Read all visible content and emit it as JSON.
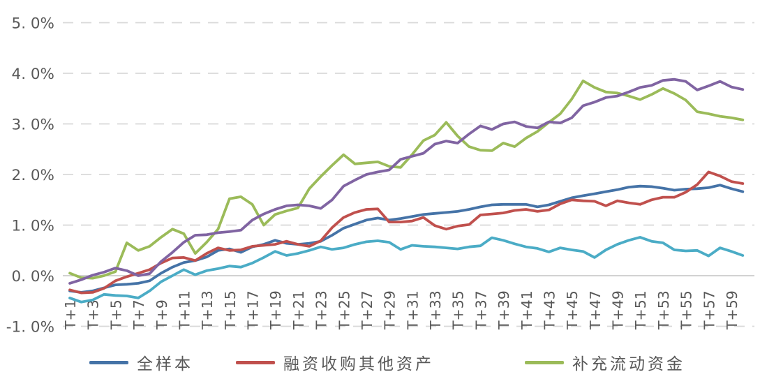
{
  "chart_data": {
    "type": "line",
    "title": "",
    "legend_position": "bottom",
    "grid": "horizontal-dashed",
    "x_points": 60,
    "x_tick_labels": [
      "T+1",
      "T+3",
      "T+5",
      "T+7",
      "T+9",
      "T+11",
      "T+13",
      "T+15",
      "T+17",
      "T+19",
      "T+21",
      "T+23",
      "T+25",
      "T+27",
      "T+29",
      "T+31",
      "T+33",
      "T+35",
      "T+37",
      "T+39",
      "T+41",
      "T+43",
      "T+45",
      "T+47",
      "T+49",
      "T+51",
      "T+53",
      "T+55",
      "T+57",
      "T+59"
    ],
    "y_axis": {
      "min": -1,
      "max": 5,
      "unit": "%",
      "tick_labels": [
        "5. 0%",
        "4. 0%",
        "3. 0%",
        "2. 0%",
        "1. 0%",
        "0. 0%",
        "-1. 0%"
      ],
      "tick_values": [
        5,
        4,
        3,
        2,
        1,
        0,
        -1
      ]
    },
    "colors": {
      "blue": "#4573a7",
      "red": "#c0504d",
      "green": "#9bbb59",
      "purple": "#8064a2",
      "cyan": "#4bacc6",
      "gridline": "#d9d9d9",
      "zero_line": "#c3c3c3",
      "axis_text": "#595959"
    },
    "legend": [
      {
        "label": "全样本",
        "color": "#4573a7"
      },
      {
        "label": "融资收购其他资产",
        "color": "#c0504d"
      },
      {
        "label": "补充流动资金",
        "color": "#9bbb59"
      }
    ],
    "series": [
      {
        "key": "all-samples",
        "name": "全样本",
        "color": "#4573a7",
        "legend_visible": true,
        "values": [
          -0.3,
          -0.33,
          -0.3,
          -0.24,
          -0.18,
          -0.17,
          -0.15,
          -0.1,
          0.05,
          0.17,
          0.26,
          0.3,
          0.37,
          0.5,
          0.53,
          0.46,
          0.57,
          0.62,
          0.7,
          0.64,
          0.62,
          0.64,
          0.68,
          0.8,
          0.94,
          1.02,
          1.1,
          1.14,
          1.1,
          1.13,
          1.17,
          1.21,
          1.23,
          1.25,
          1.27,
          1.31,
          1.36,
          1.4,
          1.41,
          1.41,
          1.41,
          1.36,
          1.4,
          1.47,
          1.54,
          1.58,
          1.62,
          1.66,
          1.7,
          1.75,
          1.77,
          1.76,
          1.73,
          1.69,
          1.71,
          1.72,
          1.74,
          1.79,
          1.72,
          1.66
        ]
      },
      {
        "key": "financing-acquire-assets",
        "name": "融资收购其他资产",
        "color": "#c0504d",
        "legend_visible": true,
        "values": [
          -0.28,
          -0.34,
          -0.33,
          -0.25,
          -0.1,
          -0.02,
          0.05,
          0.12,
          0.25,
          0.35,
          0.36,
          0.3,
          0.44,
          0.55,
          0.5,
          0.51,
          0.58,
          0.6,
          0.62,
          0.68,
          0.62,
          0.58,
          0.69,
          0.95,
          1.15,
          1.25,
          1.31,
          1.32,
          1.06,
          1.06,
          1.08,
          1.15,
          0.99,
          0.92,
          0.98,
          1.01,
          1.2,
          1.22,
          1.24,
          1.29,
          1.31,
          1.27,
          1.3,
          1.42,
          1.5,
          1.48,
          1.47,
          1.38,
          1.48,
          1.44,
          1.41,
          1.5,
          1.55,
          1.55,
          1.65,
          1.8,
          2.05,
          1.97,
          1.86,
          1.82
        ]
      },
      {
        "key": "working-capital",
        "name": "补充流动资金",
        "color": "#9bbb59",
        "legend_visible": true,
        "values": [
          0.05,
          -0.04,
          -0.05,
          0.0,
          0.08,
          0.65,
          0.5,
          0.58,
          0.76,
          0.92,
          0.83,
          0.44,
          0.66,
          0.92,
          1.52,
          1.56,
          1.41,
          1.0,
          1.21,
          1.28,
          1.34,
          1.72,
          1.96,
          2.18,
          2.39,
          2.21,
          2.23,
          2.25,
          2.16,
          2.14,
          2.39,
          2.67,
          2.78,
          3.03,
          2.76,
          2.55,
          2.48,
          2.47,
          2.62,
          2.55,
          2.72,
          2.85,
          3.03,
          3.2,
          3.49,
          3.85,
          3.72,
          3.63,
          3.61,
          3.55,
          3.48,
          3.58,
          3.7,
          3.6,
          3.47,
          3.24,
          3.2,
          3.15,
          3.12,
          3.08
        ]
      },
      {
        "key": "purple-series",
        "name": "",
        "color": "#8064a2",
        "legend_visible": false,
        "values": [
          -0.15,
          -0.08,
          0.01,
          0.07,
          0.15,
          0.1,
          0.0,
          0.04,
          0.28,
          0.46,
          0.66,
          0.8,
          0.81,
          0.85,
          0.87,
          0.9,
          1.1,
          1.22,
          1.31,
          1.38,
          1.4,
          1.38,
          1.33,
          1.5,
          1.77,
          1.89,
          2.0,
          2.05,
          2.09,
          2.3,
          2.36,
          2.42,
          2.6,
          2.66,
          2.62,
          2.8,
          2.96,
          2.89,
          3.0,
          3.04,
          2.95,
          2.92,
          3.04,
          3.02,
          3.12,
          3.36,
          3.43,
          3.52,
          3.55,
          3.63,
          3.72,
          3.76,
          3.86,
          3.88,
          3.84,
          3.67,
          3.75,
          3.84,
          3.73,
          3.68
        ]
      },
      {
        "key": "cyan-series",
        "name": "",
        "color": "#4bacc6",
        "legend_visible": false,
        "values": [
          -0.44,
          -0.52,
          -0.48,
          -0.37,
          -0.39,
          -0.4,
          -0.44,
          -0.3,
          -0.12,
          0.0,
          0.12,
          0.02,
          0.1,
          0.14,
          0.19,
          0.17,
          0.25,
          0.36,
          0.48,
          0.4,
          0.44,
          0.5,
          0.57,
          0.52,
          0.55,
          0.62,
          0.67,
          0.69,
          0.66,
          0.52,
          0.6,
          0.58,
          0.57,
          0.55,
          0.53,
          0.57,
          0.59,
          0.75,
          0.7,
          0.63,
          0.57,
          0.54,
          0.47,
          0.55,
          0.51,
          0.48,
          0.36,
          0.51,
          0.62,
          0.7,
          0.76,
          0.68,
          0.65,
          0.51,
          0.49,
          0.5,
          0.39,
          0.55,
          0.48,
          0.4
        ]
      }
    ]
  }
}
